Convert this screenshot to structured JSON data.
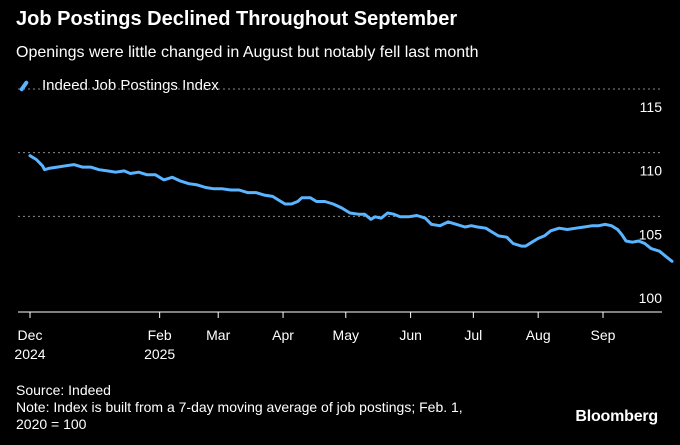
{
  "title": "Job Postings Declined Throughout September",
  "subtitle": "Openings were little changed in August but notably fell last month",
  "source": "Source: Indeed",
  "note_line1": "Note: Index is built from a 7-day moving average of job postings; Feb. 1,",
  "note_line2": "2020 = 100",
  "brand": "Bloomberg",
  "colors": {
    "background": "#000000",
    "series": "#5ab4ff",
    "grid": "#8a8a8a",
    "text": "#ffffff"
  },
  "chart_data": {
    "type": "line",
    "title": "Job Postings Declined Throughout September",
    "subtitle": "Openings were little changed in August but notably fell last month",
    "xlabel": "",
    "ylabel": "",
    "ylim": [
      100,
      115
    ],
    "yticks": [
      100,
      105,
      110,
      115
    ],
    "y_axis_side": "right",
    "grid": "horizontal dotted",
    "legend_position": "top-left",
    "xlim": [
      "2024-12-01",
      "2025-09-30"
    ],
    "xticks": [
      {
        "date": "2024-12-01",
        "label": "Dec",
        "label2": "2024"
      },
      {
        "date": "2025-02-01",
        "label": "Feb",
        "label2": "2025"
      },
      {
        "date": "2025-03-01",
        "label": "Mar",
        "label2": ""
      },
      {
        "date": "2025-04-01",
        "label": "Apr",
        "label2": ""
      },
      {
        "date": "2025-05-01",
        "label": "May",
        "label2": ""
      },
      {
        "date": "2025-06-01",
        "label": "Jun",
        "label2": ""
      },
      {
        "date": "2025-07-01",
        "label": "Jul",
        "label2": ""
      },
      {
        "date": "2025-08-01",
        "label": "Aug",
        "label2": ""
      },
      {
        "date": "2025-09-01",
        "label": "Sep",
        "label2": ""
      }
    ],
    "series": [
      {
        "name": "Indeed Job Postings Index",
        "points": [
          [
            "2024-12-01",
            111.1
          ],
          [
            "2024-12-04",
            110.8
          ],
          [
            "2024-12-07",
            110.3
          ],
          [
            "2024-12-08",
            110.0
          ],
          [
            "2024-12-10",
            110.1
          ],
          [
            "2024-12-14",
            110.2
          ],
          [
            "2024-12-18",
            110.3
          ],
          [
            "2024-12-22",
            110.4
          ],
          [
            "2024-12-26",
            110.2
          ],
          [
            "2024-12-30",
            110.2
          ],
          [
            "2025-01-03",
            110.0
          ],
          [
            "2025-01-07",
            109.9
          ],
          [
            "2025-01-11",
            109.8
          ],
          [
            "2025-01-15",
            109.9
          ],
          [
            "2025-01-18",
            109.7
          ],
          [
            "2025-01-22",
            109.8
          ],
          [
            "2025-01-26",
            109.6
          ],
          [
            "2025-01-30",
            109.6
          ],
          [
            "2025-02-03",
            109.2
          ],
          [
            "2025-02-07",
            109.4
          ],
          [
            "2025-02-11",
            109.1
          ],
          [
            "2025-02-15",
            108.9
          ],
          [
            "2025-02-19",
            108.8
          ],
          [
            "2025-02-23",
            108.6
          ],
          [
            "2025-02-27",
            108.5
          ],
          [
            "2025-03-03",
            108.5
          ],
          [
            "2025-03-07",
            108.4
          ],
          [
            "2025-03-11",
            108.4
          ],
          [
            "2025-03-15",
            108.2
          ],
          [
            "2025-03-19",
            108.2
          ],
          [
            "2025-03-23",
            108.0
          ],
          [
            "2025-03-27",
            107.9
          ],
          [
            "2025-03-31",
            107.5
          ],
          [
            "2025-04-02",
            107.3
          ],
          [
            "2025-04-05",
            107.3
          ],
          [
            "2025-04-08",
            107.5
          ],
          [
            "2025-04-10",
            107.8
          ],
          [
            "2025-04-14",
            107.8
          ],
          [
            "2025-04-17",
            107.5
          ],
          [
            "2025-04-21",
            107.5
          ],
          [
            "2025-04-25",
            107.3
          ],
          [
            "2025-04-29",
            107.0
          ],
          [
            "2025-05-03",
            106.6
          ],
          [
            "2025-05-07",
            106.5
          ],
          [
            "2025-05-10",
            106.5
          ],
          [
            "2025-05-13",
            106.1
          ],
          [
            "2025-05-15",
            106.3
          ],
          [
            "2025-05-18",
            106.2
          ],
          [
            "2025-05-21",
            106.6
          ],
          [
            "2025-05-24",
            106.5
          ],
          [
            "2025-05-27",
            106.3
          ],
          [
            "2025-05-31",
            106.3
          ],
          [
            "2025-06-04",
            106.4
          ],
          [
            "2025-06-08",
            106.2
          ],
          [
            "2025-06-11",
            105.7
          ],
          [
            "2025-06-15",
            105.6
          ],
          [
            "2025-06-19",
            105.9
          ],
          [
            "2025-06-23",
            105.7
          ],
          [
            "2025-06-27",
            105.5
          ],
          [
            "2025-06-30",
            105.6
          ],
          [
            "2025-07-03",
            105.5
          ],
          [
            "2025-07-07",
            105.4
          ],
          [
            "2025-07-10",
            105.1
          ],
          [
            "2025-07-13",
            104.8
          ],
          [
            "2025-07-17",
            104.7
          ],
          [
            "2025-07-20",
            104.2
          ],
          [
            "2025-07-24",
            104.0
          ],
          [
            "2025-07-26",
            104.0
          ],
          [
            "2025-07-29",
            104.3
          ],
          [
            "2025-08-01",
            104.6
          ],
          [
            "2025-08-04",
            104.8
          ],
          [
            "2025-08-07",
            105.2
          ],
          [
            "2025-08-11",
            105.4
          ],
          [
            "2025-08-15",
            105.3
          ],
          [
            "2025-08-19",
            105.4
          ],
          [
            "2025-08-23",
            105.5
          ],
          [
            "2025-08-27",
            105.6
          ],
          [
            "2025-08-30",
            105.6
          ],
          [
            "2025-09-02",
            105.7
          ],
          [
            "2025-09-05",
            105.6
          ],
          [
            "2025-09-08",
            105.3
          ],
          [
            "2025-09-10",
            104.9
          ],
          [
            "2025-09-12",
            104.4
          ],
          [
            "2025-09-15",
            104.3
          ],
          [
            "2025-09-18",
            104.4
          ],
          [
            "2025-09-21",
            104.2
          ],
          [
            "2025-09-24",
            103.8
          ],
          [
            "2025-09-28",
            103.6
          ],
          [
            "2025-10-01",
            103.2
          ],
          [
            "2025-10-04",
            102.8
          ]
        ]
      }
    ]
  }
}
